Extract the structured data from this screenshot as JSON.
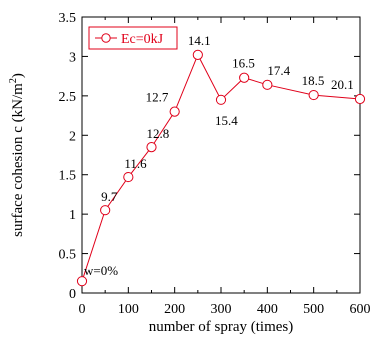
{
  "chart_data": {
    "type": "line",
    "xlabel": "number of spray (times)",
    "ylabel": "surface cohesion c (kN/m²)",
    "ylabel_parts": {
      "main": "surface cohesion  c (kN/m",
      "sup": "2",
      "end": ")"
    },
    "xlim": [
      0,
      600
    ],
    "ylim": [
      0,
      3.5
    ],
    "x_ticks": [
      0,
      100,
      200,
      300,
      400,
      500,
      600
    ],
    "y_ticks": [
      0,
      0.5,
      1,
      1.5,
      2,
      2.5,
      3,
      3.5
    ],
    "x_tick_labels": [
      "0",
      "100",
      "200",
      "300",
      "400",
      "500",
      "600"
    ],
    "y_tick_labels": [
      "0",
      "0.5",
      "1",
      "1.5",
      "2",
      "2.5",
      "3",
      "3.5"
    ],
    "grid": false,
    "legend_position": "top-left",
    "series": [
      {
        "name": "Ec=0kJ",
        "color": "#e0001a",
        "marker": "open-circle",
        "points": [
          {
            "x": 0,
            "y": 0.15,
            "label": "w=0%"
          },
          {
            "x": 50,
            "y": 1.05,
            "label": "9.7"
          },
          {
            "x": 100,
            "y": 1.47,
            "label": "11.6"
          },
          {
            "x": 150,
            "y": 1.85,
            "label": "12.8"
          },
          {
            "x": 200,
            "y": 2.3,
            "label": "12.7"
          },
          {
            "x": 250,
            "y": 3.02,
            "label": "14.1"
          },
          {
            "x": 300,
            "y": 2.45,
            "label": "15.4"
          },
          {
            "x": 350,
            "y": 2.73,
            "label": "16.5"
          },
          {
            "x": 400,
            "y": 2.64,
            "label": "17.4"
          },
          {
            "x": 500,
            "y": 2.51,
            "label": "18.5"
          },
          {
            "x": 600,
            "y": 2.46,
            "label": "20.1"
          }
        ]
      }
    ]
  }
}
